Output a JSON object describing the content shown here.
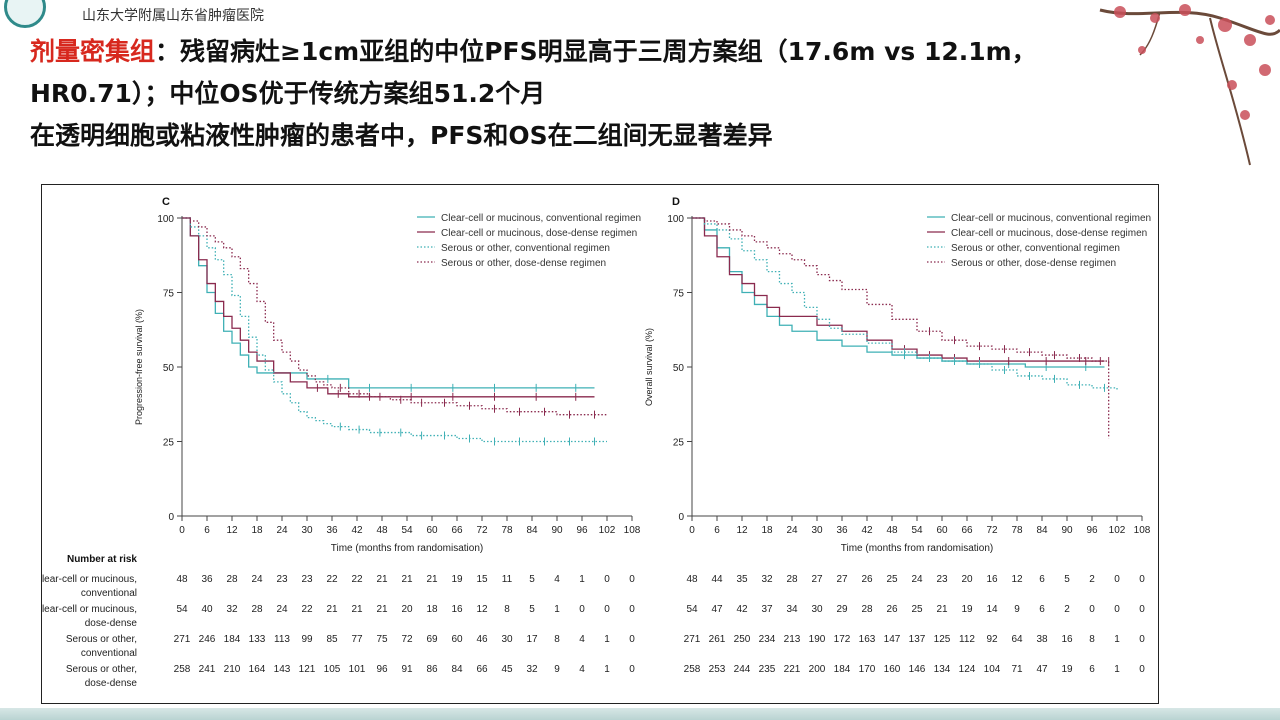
{
  "header": {
    "hospital_name": "山东大学附属山东省肿瘤医院"
  },
  "headline": {
    "line1_highlight": "剂量密集组",
    "line1_rest": "：残留病灶≥1cm亚组的中位PFS明显高于三周方案组（17.6m vs 12.1m，",
    "line2": "HR0.71）；中位OS优于传统方案组51.2个月",
    "line3": "在透明细胞或粘液性肿瘤的患者中，PFS和OS在二组间无显著差异"
  },
  "colors": {
    "teal": "#3fb0b5",
    "maroon": "#8a2a4e",
    "accent_red": "#d7281e",
    "frame": "#222222"
  },
  "chart_data": [
    {
      "type": "line",
      "panel": "C",
      "ylabel": "Progression-free survival (%)",
      "xlabel": "Time (months from randomisation)",
      "xlim": [
        0,
        108
      ],
      "ylim": [
        0,
        100
      ],
      "x_ticks": [
        "0",
        "6",
        "12",
        "18",
        "24",
        "30",
        "36",
        "42",
        "48",
        "54",
        "60",
        "66",
        "72",
        "78",
        "84",
        "90",
        "96",
        "102",
        "108"
      ],
      "y_ticks": [
        "0",
        "25",
        "50",
        "75",
        "100"
      ],
      "legend_position": "top-right",
      "series": [
        {
          "name": "Clear-cell or mucinous, conventional regimen",
          "color": "#3fb0b5",
          "style": "solid",
          "x": [
            0,
            2,
            4,
            6,
            8,
            10,
            12,
            14,
            16,
            18,
            22,
            30,
            40,
            50,
            60,
            70,
            80,
            90,
            99
          ],
          "y": [
            100,
            94,
            84,
            75,
            68,
            62,
            58,
            54,
            50,
            48,
            48,
            46,
            43,
            43,
            43,
            43,
            43,
            43,
            43
          ]
        },
        {
          "name": "Clear-cell or mucinous, dose-dense regimen",
          "color": "#8a2a4e",
          "style": "solid",
          "x": [
            0,
            2,
            4,
            6,
            8,
            10,
            12,
            14,
            16,
            18,
            22,
            26,
            30,
            35,
            40,
            50,
            60,
            70,
            80,
            90,
            99
          ],
          "y": [
            100,
            94,
            86,
            78,
            72,
            67,
            63,
            59,
            55,
            52,
            48,
            45,
            43,
            41,
            40,
            40,
            40,
            40,
            40,
            40,
            40
          ]
        },
        {
          "name": "Serous or other, conventional regimen",
          "color": "#3fb0b5",
          "style": "dotted",
          "x": [
            0,
            2,
            4,
            6,
            8,
            10,
            12,
            14,
            16,
            18,
            20,
            22,
            24,
            26,
            28,
            30,
            32,
            34,
            36,
            40,
            45,
            50,
            55,
            60,
            66,
            72,
            78,
            84,
            90,
            96,
            102
          ],
          "y": [
            100,
            97,
            94,
            90,
            86,
            81,
            74,
            67,
            60,
            54,
            49,
            45,
            41,
            38,
            35,
            33,
            32,
            31,
            30,
            29,
            28,
            28,
            27,
            27,
            26,
            25,
            25,
            25,
            25,
            25,
            25
          ]
        },
        {
          "name": "Serous or other, dose-dense regimen",
          "color": "#8a2a4e",
          "style": "dotted",
          "x": [
            0,
            2,
            4,
            6,
            8,
            10,
            12,
            14,
            16,
            18,
            20,
            22,
            24,
            26,
            28,
            30,
            32,
            34,
            36,
            40,
            45,
            50,
            55,
            60,
            66,
            72,
            78,
            84,
            90,
            96,
            102
          ],
          "y": [
            100,
            99,
            97,
            94,
            92,
            90,
            87,
            83,
            78,
            72,
            65,
            59,
            55,
            52,
            49,
            47,
            45,
            44,
            43,
            41,
            40,
            39,
            38,
            38,
            37,
            36,
            35,
            35,
            34,
            34,
            34
          ]
        }
      ]
    },
    {
      "type": "line",
      "panel": "D",
      "ylabel": "Overall survival (%)",
      "xlabel": "Time (months from randomisation)",
      "xlim": [
        0,
        108
      ],
      "ylim": [
        0,
        100
      ],
      "x_ticks": [
        "0",
        "6",
        "12",
        "18",
        "24",
        "30",
        "36",
        "42",
        "48",
        "54",
        "60",
        "66",
        "72",
        "78",
        "84",
        "90",
        "96",
        "102",
        "108"
      ],
      "y_ticks": [
        "0",
        "25",
        "50",
        "75",
        "100"
      ],
      "legend_position": "top-right",
      "series": [
        {
          "name": "Clear-cell or mucinous, conventional regimen",
          "color": "#3fb0b5",
          "style": "solid",
          "x": [
            0,
            3,
            6,
            9,
            12,
            15,
            18,
            21,
            24,
            30,
            36,
            42,
            48,
            54,
            60,
            66,
            72,
            80,
            90,
            99
          ],
          "y": [
            100,
            96,
            90,
            82,
            75,
            71,
            67,
            64,
            62,
            59,
            57,
            55,
            54,
            53,
            52,
            51,
            51,
            50,
            50,
            50
          ]
        },
        {
          "name": "Clear-cell or mucinous, dose-dense regimen",
          "color": "#8a2a4e",
          "style": "solid",
          "x": [
            0,
            3,
            6,
            9,
            12,
            15,
            18,
            21,
            24,
            30,
            36,
            42,
            48,
            54,
            60,
            66,
            72,
            80,
            90,
            99
          ],
          "y": [
            100,
            94,
            87,
            81,
            78,
            74,
            70,
            67,
            67,
            64,
            62,
            59,
            56,
            54,
            53,
            52,
            52,
            52,
            52,
            52
          ]
        },
        {
          "name": "Serous or other, conventional regimen",
          "color": "#3fb0b5",
          "style": "dotted",
          "x": [
            0,
            3,
            6,
            9,
            12,
            15,
            18,
            21,
            24,
            27,
            30,
            33,
            36,
            42,
            48,
            54,
            60,
            66,
            72,
            78,
            84,
            90,
            96,
            102
          ],
          "y": [
            100,
            98,
            96,
            93,
            89,
            86,
            82,
            78,
            75,
            70,
            66,
            63,
            61,
            58,
            55,
            53,
            52,
            51,
            49,
            47,
            46,
            44,
            43,
            42
          ]
        },
        {
          "name": "Serous or other, dose-dense regimen",
          "color": "#8a2a4e",
          "style": "dotted",
          "x": [
            0,
            3,
            6,
            9,
            12,
            15,
            18,
            21,
            24,
            27,
            30,
            33,
            36,
            42,
            48,
            54,
            60,
            66,
            72,
            78,
            84,
            90,
            96,
            100,
            100
          ],
          "y": [
            100,
            99,
            98,
            96,
            94,
            92,
            90,
            88,
            86,
            84,
            81,
            79,
            76,
            71,
            66,
            62,
            59,
            57,
            56,
            55,
            54,
            53,
            52,
            52,
            26
          ]
        }
      ]
    }
  ],
  "risk_table": {
    "title": "Number at risk",
    "rows": [
      {
        "label1": "Clear-cell or mucinous,",
        "label2": "conventional",
        "c": [
          "48",
          "36",
          "28",
          "24",
          "23",
          "23",
          "22",
          "22",
          "21",
          "21",
          "21",
          "19",
          "15",
          "11",
          "5",
          "4",
          "1",
          "0",
          "0"
        ],
        "d": [
          "48",
          "44",
          "35",
          "32",
          "28",
          "27",
          "27",
          "26",
          "25",
          "24",
          "23",
          "20",
          "16",
          "12",
          "6",
          "5",
          "2",
          "0",
          "0"
        ]
      },
      {
        "label1": "Clear-cell or mucinous,",
        "label2": "dose-dense",
        "c": [
          "54",
          "40",
          "32",
          "28",
          "24",
          "22",
          "21",
          "21",
          "21",
          "20",
          "18",
          "16",
          "12",
          "8",
          "5",
          "1",
          "0",
          "0",
          "0"
        ],
        "d": [
          "54",
          "47",
          "42",
          "37",
          "34",
          "30",
          "29",
          "28",
          "26",
          "25",
          "21",
          "19",
          "14",
          "9",
          "6",
          "2",
          "0",
          "0",
          "0"
        ]
      },
      {
        "label1": "Serous or other,",
        "label2": "conventional",
        "c": [
          "271",
          "246",
          "184",
          "133",
          "113",
          "99",
          "85",
          "77",
          "75",
          "72",
          "69",
          "60",
          "46",
          "30",
          "17",
          "8",
          "4",
          "1",
          "0"
        ],
        "d": [
          "271",
          "261",
          "250",
          "234",
          "213",
          "190",
          "172",
          "163",
          "147",
          "137",
          "125",
          "112",
          "92",
          "64",
          "38",
          "16",
          "8",
          "1",
          "0"
        ]
      },
      {
        "label1": "Serous or other,",
        "label2": "dose-dense",
        "c": [
          "258",
          "241",
          "210",
          "164",
          "143",
          "121",
          "105",
          "101",
          "96",
          "91",
          "86",
          "84",
          "66",
          "45",
          "32",
          "9",
          "4",
          "1",
          "0"
        ],
        "d": [
          "258",
          "253",
          "244",
          "235",
          "221",
          "200",
          "184",
          "170",
          "160",
          "146",
          "134",
          "124",
          "104",
          "71",
          "47",
          "19",
          "6",
          "1",
          "0"
        ]
      }
    ]
  }
}
